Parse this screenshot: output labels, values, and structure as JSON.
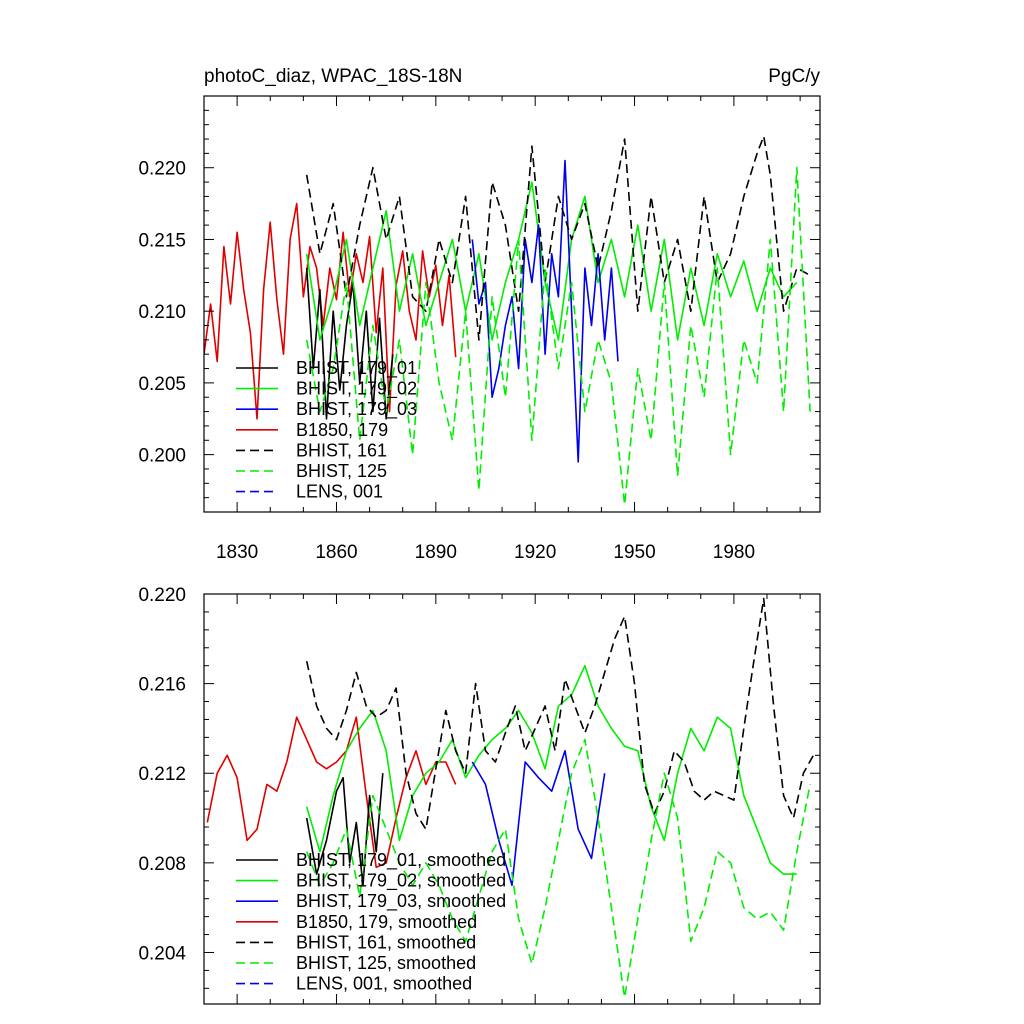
{
  "chart_data": [
    {
      "type": "line",
      "title_left": "photoC_diaz, WPAC_18S-18N",
      "title_right": "PgC/y",
      "xlim": [
        1820,
        2006
      ],
      "ylim": [
        0.196,
        0.225
      ],
      "xticks": [
        1830,
        1860,
        1890,
        1920,
        1950,
        1980
      ],
      "yticks": [
        0.2,
        0.205,
        0.21,
        0.215,
        0.22
      ],
      "ytick_labels": [
        "0.200",
        "0.205",
        "0.210",
        "0.215",
        "0.220"
      ],
      "series": [
        {
          "name": "B1850, 179",
          "color": "#e00000",
          "dash": "solid",
          "x": [
            1820,
            1822,
            1824,
            1826,
            1828,
            1830,
            1832,
            1834,
            1836,
            1838,
            1840,
            1842,
            1844,
            1846,
            1848,
            1850,
            1852,
            1854,
            1856,
            1858,
            1860,
            1862,
            1864,
            1866,
            1868,
            1870,
            1872,
            1874,
            1876,
            1878,
            1880,
            1882,
            1884,
            1886,
            1888,
            1890,
            1892,
            1894,
            1896
          ],
          "y": [
            0.207,
            0.2105,
            0.2065,
            0.2145,
            0.2105,
            0.2155,
            0.2115,
            0.2085,
            0.2025,
            0.2115,
            0.2162,
            0.2108,
            0.207,
            0.215,
            0.2175,
            0.211,
            0.2145,
            0.213,
            0.209,
            0.213,
            0.2108,
            0.2155,
            0.211,
            0.214,
            0.212,
            0.2152,
            0.2085,
            0.213,
            0.203,
            0.2118,
            0.2142,
            0.21,
            0.208,
            0.2142,
            0.211,
            0.2132,
            0.209,
            0.2125,
            0.2068
          ]
        },
        {
          "name": "BHIST, 179_01",
          "color": "#000000",
          "dash": "solid",
          "x": [
            1851,
            1853,
            1855,
            1857,
            1859,
            1861,
            1863,
            1865,
            1867,
            1869,
            1871,
            1873,
            1875,
            1877
          ],
          "y": [
            0.213,
            0.206,
            0.2115,
            0.2025,
            0.21,
            0.2045,
            0.209,
            0.212,
            0.205,
            0.21,
            0.203,
            0.2095,
            0.2025,
            0.207
          ]
        },
        {
          "name": "BHIST, 179_02",
          "color": "#00ee00",
          "dash": "solid",
          "x": [
            1851,
            1855,
            1859,
            1863,
            1867,
            1871,
            1875,
            1879,
            1883,
            1887,
            1891,
            1895,
            1899,
            1903,
            1907,
            1911,
            1915,
            1919,
            1923,
            1927,
            1931,
            1935,
            1939,
            1943,
            1947,
            1951,
            1955,
            1959,
            1963,
            1967,
            1971,
            1975,
            1979,
            1983,
            1987,
            1991,
            1995,
            1999
          ],
          "y": [
            0.214,
            0.208,
            0.211,
            0.215,
            0.209,
            0.213,
            0.217,
            0.21,
            0.214,
            0.209,
            0.212,
            0.215,
            0.21,
            0.214,
            0.208,
            0.212,
            0.215,
            0.219,
            0.212,
            0.208,
            0.215,
            0.218,
            0.212,
            0.215,
            0.211,
            0.216,
            0.21,
            0.215,
            0.208,
            0.213,
            0.209,
            0.214,
            0.211,
            0.2135,
            0.21,
            0.213,
            0.211,
            0.212
          ]
        },
        {
          "name": "BHIST, 179_03",
          "color": "#0000ee",
          "dash": "solid",
          "x": [
            1901,
            1903,
            1905,
            1907,
            1909,
            1911,
            1913,
            1915,
            1917,
            1919,
            1921,
            1923,
            1925,
            1927,
            1929,
            1931,
            1933,
            1935,
            1937,
            1939,
            1941,
            1943,
            1945
          ],
          "y": [
            0.215,
            0.2105,
            0.212,
            0.204,
            0.206,
            0.209,
            0.211,
            0.206,
            0.215,
            0.212,
            0.216,
            0.207,
            0.214,
            0.211,
            0.2205,
            0.21,
            0.1995,
            0.213,
            0.209,
            0.214,
            0.208,
            0.213,
            0.2065
          ]
        },
        {
          "name": "BHIST, 161",
          "color": "#000000",
          "dash": "dashed",
          "x": [
            1851,
            1855,
            1859,
            1863,
            1867,
            1871,
            1875,
            1879,
            1883,
            1887,
            1891,
            1895,
            1899,
            1903,
            1907,
            1911,
            1915,
            1919,
            1923,
            1927,
            1931,
            1935,
            1939,
            1943,
            1947,
            1951,
            1955,
            1959,
            1963,
            1967,
            1971,
            1975,
            1979,
            1983,
            1987,
            1989,
            1991,
            1995,
            1999,
            2003
          ],
          "y": [
            0.2195,
            0.214,
            0.2175,
            0.211,
            0.216,
            0.22,
            0.215,
            0.218,
            0.211,
            0.21,
            0.215,
            0.212,
            0.218,
            0.208,
            0.219,
            0.216,
            0.21,
            0.2215,
            0.212,
            0.218,
            0.215,
            0.2175,
            0.213,
            0.217,
            0.222,
            0.21,
            0.218,
            0.212,
            0.215,
            0.21,
            0.218,
            0.212,
            0.214,
            0.218,
            0.221,
            0.2222,
            0.2195,
            0.21,
            0.213,
            0.2125
          ]
        },
        {
          "name": "BHIST, 125",
          "color": "#00ee00",
          "dash": "dashed",
          "x": [
            1851,
            1855,
            1859,
            1863,
            1867,
            1871,
            1875,
            1879,
            1883,
            1887,
            1891,
            1895,
            1899,
            1903,
            1907,
            1911,
            1915,
            1919,
            1923,
            1927,
            1931,
            1935,
            1939,
            1943,
            1947,
            1951,
            1955,
            1959,
            1963,
            1967,
            1971,
            1975,
            1979,
            1983,
            1987,
            1991,
            1995,
            1999,
            2003
          ],
          "y": [
            0.208,
            0.203,
            0.206,
            0.212,
            0.201,
            0.209,
            0.203,
            0.208,
            0.2,
            0.212,
            0.205,
            0.201,
            0.21,
            0.1975,
            0.211,
            0.204,
            0.215,
            0.201,
            0.213,
            0.206,
            0.212,
            0.203,
            0.208,
            0.205,
            0.1965,
            0.206,
            0.201,
            0.212,
            0.1985,
            0.209,
            0.204,
            0.213,
            0.2,
            0.208,
            0.205,
            0.215,
            0.203,
            0.22,
            0.203
          ]
        }
      ],
      "legend": [
        {
          "label": "BHIST, 179_01",
          "color": "#000000",
          "dash": "solid"
        },
        {
          "label": "BHIST, 179_02",
          "color": "#00ee00",
          "dash": "solid"
        },
        {
          "label": "BHIST, 179_03",
          "color": "#0000ee",
          "dash": "solid"
        },
        {
          "label": "B1850, 179",
          "color": "#e00000",
          "dash": "solid"
        },
        {
          "label": "BHIST, 161",
          "color": "#000000",
          "dash": "dashed"
        },
        {
          "label": "BHIST, 125",
          "color": "#00ee00",
          "dash": "dashed"
        },
        {
          "label": "LENS, 001",
          "color": "#0000ee",
          "dash": "dashed"
        }
      ]
    },
    {
      "type": "line",
      "xlim": [
        1820,
        2006
      ],
      "ylim": [
        0.2017,
        0.22
      ],
      "xticks": [
        1830,
        1860,
        1890,
        1920,
        1950,
        1980
      ],
      "yticks": [
        0.204,
        0.208,
        0.212,
        0.216,
        0.22
      ],
      "ytick_labels": [
        "0.204",
        "0.208",
        "0.212",
        "0.216",
        "0.220"
      ],
      "series": [
        {
          "name": "B1850, 179, smoothed",
          "color": "#e00000",
          "dash": "solid",
          "x": [
            1821,
            1824,
            1827,
            1830,
            1833,
            1836,
            1839,
            1842,
            1845,
            1848,
            1851,
            1854,
            1857,
            1860,
            1863,
            1866,
            1869,
            1872,
            1875,
            1878,
            1881,
            1884,
            1887,
            1890,
            1893,
            1896
          ],
          "y": [
            0.2098,
            0.212,
            0.2128,
            0.2118,
            0.209,
            0.2095,
            0.2115,
            0.2112,
            0.2125,
            0.2145,
            0.2135,
            0.2125,
            0.2122,
            0.2125,
            0.213,
            0.2145,
            0.211,
            0.2078,
            0.208,
            0.21,
            0.2118,
            0.213,
            0.2115,
            0.2125,
            0.2125,
            0.2115
          ]
        },
        {
          "name": "BHIST, 179_01, smoothed",
          "color": "#000000",
          "dash": "solid",
          "x": [
            1851,
            1854,
            1857,
            1860,
            1862,
            1864,
            1866,
            1868,
            1870,
            1872,
            1874
          ],
          "y": [
            0.21,
            0.2075,
            0.209,
            0.2112,
            0.2118,
            0.208,
            0.2098,
            0.207,
            0.211,
            0.2085,
            0.212
          ]
        },
        {
          "name": "BHIST, 179_02, smoothed",
          "color": "#00ee00",
          "dash": "solid",
          "x": [
            1851,
            1855,
            1859,
            1863,
            1867,
            1871,
            1875,
            1879,
            1883,
            1887,
            1891,
            1895,
            1899,
            1903,
            1907,
            1911,
            1915,
            1919,
            1923,
            1927,
            1931,
            1935,
            1939,
            1943,
            1947,
            1951,
            1955,
            1959,
            1963,
            1967,
            1971,
            1975,
            1979,
            1983,
            1987,
            1991,
            1995,
            1999
          ],
          "y": [
            0.2105,
            0.2085,
            0.211,
            0.213,
            0.214,
            0.2148,
            0.213,
            0.209,
            0.211,
            0.212,
            0.2125,
            0.2135,
            0.2118,
            0.2128,
            0.2135,
            0.214,
            0.2148,
            0.2138,
            0.2122,
            0.215,
            0.2155,
            0.2168,
            0.215,
            0.214,
            0.2132,
            0.213,
            0.2105,
            0.209,
            0.212,
            0.214,
            0.213,
            0.2145,
            0.214,
            0.211,
            0.2095,
            0.208,
            0.2075,
            0.2075
          ]
        },
        {
          "name": "BHIST, 179_03, smoothed",
          "color": "#0000ee",
          "dash": "solid",
          "x": [
            1901,
            1905,
            1909,
            1913,
            1917,
            1921,
            1925,
            1929,
            1933,
            1937,
            1941
          ],
          "y": [
            0.2125,
            0.2115,
            0.209,
            0.207,
            0.2125,
            0.2118,
            0.2112,
            0.213,
            0.2095,
            0.2082,
            0.212
          ]
        },
        {
          "name": "BHIST, 161, smoothed",
          "color": "#000000",
          "dash": "dashed",
          "x": [
            1851,
            1854,
            1857,
            1860,
            1863,
            1866,
            1869,
            1872,
            1875,
            1878,
            1881,
            1884,
            1887,
            1890,
            1893,
            1896,
            1899,
            1902,
            1905,
            1908,
            1911,
            1914,
            1917,
            1920,
            1923,
            1926,
            1929,
            1932,
            1935,
            1938,
            1941,
            1944,
            1947,
            1950,
            1953,
            1956,
            1959,
            1962,
            1965,
            1968,
            1971,
            1974,
            1977,
            1980,
            1983,
            1986,
            1989,
            1992,
            1995,
            1998,
            2001,
            2004
          ],
          "y": [
            0.217,
            0.215,
            0.214,
            0.2135,
            0.2148,
            0.2165,
            0.215,
            0.2145,
            0.2148,
            0.2158,
            0.212,
            0.2102,
            0.2095,
            0.2122,
            0.2148,
            0.213,
            0.212,
            0.216,
            0.213,
            0.2125,
            0.2138,
            0.215,
            0.213,
            0.214,
            0.215,
            0.213,
            0.2162,
            0.215,
            0.2138,
            0.215,
            0.2165,
            0.218,
            0.219,
            0.216,
            0.2115,
            0.2102,
            0.2112,
            0.213,
            0.2125,
            0.2112,
            0.2108,
            0.2112,
            0.211,
            0.2108,
            0.214,
            0.217,
            0.2198,
            0.215,
            0.211,
            0.21,
            0.212,
            0.2128
          ]
        },
        {
          "name": "BHIST, 125, smoothed",
          "color": "#00ee00",
          "dash": "dashed",
          "x": [
            1851,
            1855,
            1859,
            1863,
            1867,
            1871,
            1875,
            1879,
            1883,
            1887,
            1891,
            1895,
            1899,
            1903,
            1907,
            1911,
            1915,
            1919,
            1923,
            1927,
            1931,
            1935,
            1939,
            1943,
            1947,
            1951,
            1955,
            1959,
            1963,
            1967,
            1971,
            1975,
            1979,
            1983,
            1987,
            1991,
            1995,
            1999,
            2003
          ],
          "y": [
            0.2085,
            0.207,
            0.208,
            0.2095,
            0.2065,
            0.211,
            0.2095,
            0.208,
            0.207,
            0.208,
            0.207,
            0.2055,
            0.2045,
            0.2065,
            0.2085,
            0.2095,
            0.2055,
            0.2035,
            0.206,
            0.209,
            0.212,
            0.2135,
            0.21,
            0.206,
            0.202,
            0.2055,
            0.209,
            0.212,
            0.21,
            0.2045,
            0.206,
            0.2085,
            0.208,
            0.206,
            0.2055,
            0.2058,
            0.205,
            0.2085,
            0.2115
          ]
        }
      ],
      "legend": [
        {
          "label": "BHIST, 179_01, smoothed",
          "color": "#000000",
          "dash": "solid"
        },
        {
          "label": "BHIST, 179_02, smoothed",
          "color": "#00ee00",
          "dash": "solid"
        },
        {
          "label": "BHIST, 179_03, smoothed",
          "color": "#0000ee",
          "dash": "solid"
        },
        {
          "label": "B1850, 179, smoothed",
          "color": "#e00000",
          "dash": "solid"
        },
        {
          "label": "BHIST, 161, smoothed",
          "color": "#000000",
          "dash": "dashed"
        },
        {
          "label": "BHIST, 125, smoothed",
          "color": "#00ee00",
          "dash": "dashed"
        },
        {
          "label": "LENS, 001, smoothed",
          "color": "#0000ee",
          "dash": "dashed"
        }
      ]
    }
  ]
}
